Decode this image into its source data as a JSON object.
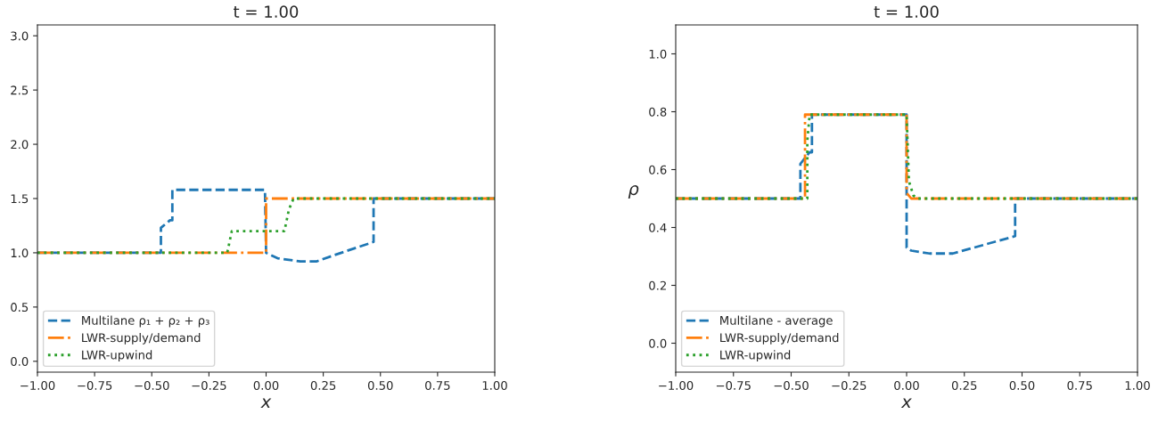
{
  "chart_data": [
    {
      "type": "line",
      "title": "t = 1.00",
      "xlabel": "x",
      "xlim": [
        -1,
        1
      ],
      "ylim": [
        -0.1,
        3.1
      ],
      "xticks": [
        {
          "value": -1,
          "label": "−1.00"
        },
        {
          "value": -0.75,
          "label": "−0.75"
        },
        {
          "value": -0.5,
          "label": "−0.50"
        },
        {
          "value": -0.25,
          "label": "−0.25"
        },
        {
          "value": 0,
          "label": "0.00"
        },
        {
          "value": 0.25,
          "label": "0.25"
        },
        {
          "value": 0.5,
          "label": "0.50"
        },
        {
          "value": 0.75,
          "label": "0.75"
        },
        {
          "value": 1,
          "label": "1.00"
        }
      ],
      "yticks": [
        {
          "value": 0,
          "label": "0.0"
        },
        0.5,
        {
          "value": 1,
          "label": "1.0"
        },
        1.5,
        {
          "value": 2,
          "label": "2.0"
        },
        2.5,
        {
          "value": 3,
          "label": "3.0"
        }
      ],
      "grid": false,
      "legend": "bottom left",
      "series": [
        {
          "name": "Multilane ρ₁ + ρ₂ + ρ₃",
          "color": "#1f77b4",
          "line_style": "dashed",
          "x": [
            -1,
            -0.46,
            -0.46,
            -0.42,
            -0.41,
            -0.41,
            -0.005,
            0,
            0.05,
            0.15,
            0.22,
            0.3,
            0.47,
            0.47,
            1
          ],
          "values": [
            1,
            1,
            1.23,
            1.3,
            1.3,
            1.58,
            1.58,
            1.0,
            0.95,
            0.92,
            0.92,
            0.98,
            1.1,
            1.5,
            1.5
          ]
        },
        {
          "name": "LWR-supply/demand",
          "color": "#ff7f0e",
          "line_style": "dashdot",
          "x": [
            -1,
            0,
            0,
            1
          ],
          "values": [
            1,
            1,
            1.5,
            1.5
          ]
        },
        {
          "name": "LWR-upwind",
          "color": "#2ca02c",
          "line_style": "dotted",
          "x": [
            -1,
            -0.17,
            -0.15,
            0.08,
            0.1,
            0.12,
            1
          ],
          "values": [
            1,
            1,
            1.2,
            1.2,
            1.4,
            1.5,
            1.5
          ]
        }
      ]
    },
    {
      "type": "line",
      "title": "t = 1.00",
      "xlabel": "x",
      "ylabel": "ρ",
      "xlim": [
        -1,
        1
      ],
      "ylim": [
        -0.1,
        1.1
      ],
      "xticks": [
        {
          "value": -1,
          "label": "−1.00"
        },
        {
          "value": -0.75,
          "label": "−0.75"
        },
        {
          "value": -0.5,
          "label": "−0.50"
        },
        {
          "value": -0.25,
          "label": "−0.25"
        },
        {
          "value": 0,
          "label": "0.00"
        },
        {
          "value": 0.25,
          "label": "0.25"
        },
        {
          "value": 0.5,
          "label": "0.50"
        },
        {
          "value": 0.75,
          "label": "0.75"
        },
        {
          "value": 1,
          "label": "1.00"
        }
      ],
      "yticks": [
        {
          "value": 0,
          "label": "0.0"
        },
        0.2,
        0.4,
        0.6,
        0.8,
        {
          "value": 1,
          "label": "1.0"
        }
      ],
      "grid": false,
      "legend": "bottom left",
      "series": [
        {
          "name": "Multilane - average",
          "color": "#1f77b4",
          "line_style": "dashed",
          "x": [
            -1,
            -0.46,
            -0.46,
            -0.42,
            -0.41,
            -0.41,
            0,
            0,
            0.02,
            0.1,
            0.2,
            0.47,
            0.47,
            1
          ],
          "values": [
            0.5,
            0.5,
            0.62,
            0.66,
            0.66,
            0.79,
            0.79,
            0.33,
            0.32,
            0.31,
            0.31,
            0.37,
            0.5,
            0.5
          ]
        },
        {
          "name": "LWR-supply/demand",
          "color": "#ff7f0e",
          "line_style": "dashdot",
          "x": [
            -1,
            -0.44,
            -0.44,
            0,
            0,
            0.02,
            1
          ],
          "values": [
            0.5,
            0.5,
            0.79,
            0.79,
            0.52,
            0.5,
            0.5
          ]
        },
        {
          "name": "LWR-upwind",
          "color": "#2ca02c",
          "line_style": "dotted",
          "x": [
            -1,
            -0.43,
            -0.43,
            -0.42,
            0,
            0.01,
            0.03,
            0.05,
            1
          ],
          "values": [
            0.5,
            0.5,
            0.7,
            0.79,
            0.79,
            0.56,
            0.51,
            0.5,
            0.5
          ]
        }
      ]
    }
  ]
}
